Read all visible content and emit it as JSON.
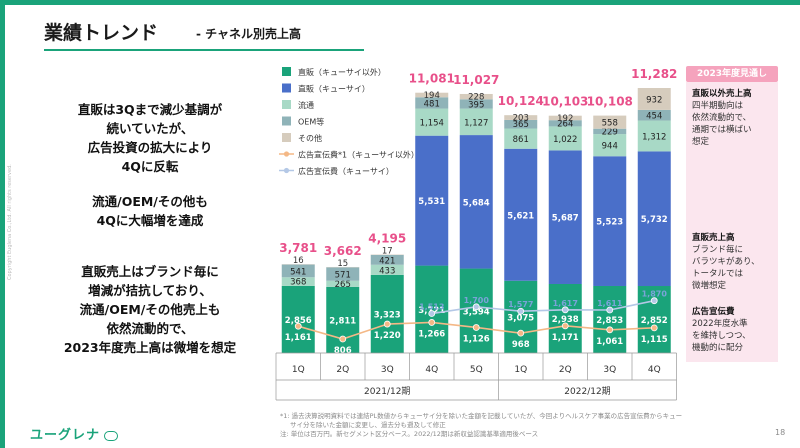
{
  "header": {
    "title": "業績トレンド",
    "subtitle": "- チャネル別売上高"
  },
  "messages": [
    [
      "直販は3Qまで減少基調が",
      "続いていたが、",
      "広告投資の拡大により",
      "4Qに反転"
    ],
    [
      "流通/OEM/その他も",
      "4Qに大幅増を達成"
    ],
    [
      "直販売上はブランド毎に",
      "増減が拮抗しており、",
      "流通/OEM/その他売上も",
      "依然流動的で、",
      "2023年度売上高は微増を想定"
    ]
  ],
  "side": {
    "badge": "2023年度見通し",
    "blocks": [
      {
        "heading": "直販以外売上高",
        "lines": [
          "四半期動向は",
          "依然流動的で、",
          "通期では横ばい",
          "想定"
        ]
      },
      {
        "heading": "直販売上高",
        "lines": [
          "ブランド毎に",
          "バラツキがあり、",
          "トータルでは",
          "微増想定"
        ]
      },
      {
        "heading": "広告宣伝費",
        "lines": [
          "2022年度水準",
          "を維持しつつ、",
          "機動的に配分"
        ]
      }
    ]
  },
  "footer": {
    "logo": "ユーグレナ",
    "notes": [
      "*1: 過去決算説明資料では連結PL数値からキューサイ分を除いた金額を記載していたが、今回よりヘルスケア事業の広告宣伝費からキュー",
      "サイ分を除いた金額に変更し、過去分も遡及して修正",
      "注: 単位は百万円。新セグメント区分ベース。2022/12期は新収益認識基準適用後ベース"
    ],
    "page": "18",
    "copyright": "Copyright Euglena Co.,Ltd. All rights reserved."
  },
  "colors": {
    "direct_ex": "#1aa37a",
    "direct_q": "#4a6fc9",
    "retail": "#a8d9c6",
    "oem": "#8fb3b8",
    "other": "#d6ccbd",
    "ad_ex": "#f4b886",
    "ad_q": "#b4c8e6",
    "total": "#e8508a",
    "badge": "#f5a3bd"
  },
  "chart_data": {
    "type": "bar",
    "stacked": true,
    "title": "チャネル別売上高",
    "categories": [
      "1Q",
      "2Q",
      "3Q",
      "4Q",
      "5Q",
      "1Q",
      "2Q",
      "3Q",
      "4Q"
    ],
    "groups": [
      {
        "label": "2021/12期",
        "categories": [
          "1Q",
          "2Q",
          "3Q",
          "4Q",
          "5Q"
        ]
      },
      {
        "label": "2022/12期",
        "categories": [
          "1Q",
          "2Q",
          "3Q",
          "4Q"
        ]
      }
    ],
    "series": [
      {
        "name": "直販（キューサイ以外）",
        "values": [
          2856,
          2811,
          3323,
          3721,
          3594,
          3075,
          2938,
          2853,
          2852
        ]
      },
      {
        "name": "直販（キューサイ）",
        "values": [
          0,
          0,
          0,
          5531,
          5684,
          5621,
          5687,
          5523,
          5732
        ]
      },
      {
        "name": "流通",
        "values": [
          368,
          265,
          433,
          1154,
          1127,
          861,
          1022,
          944,
          1312
        ]
      },
      {
        "name": "OEM等",
        "values": [
          541,
          571,
          421,
          481,
          395,
          365,
          264,
          229,
          454
        ]
      },
      {
        "name": "その他",
        "values": [
          16,
          15,
          17,
          194,
          228,
          203,
          192,
          558,
          932
        ]
      }
    ],
    "totals": [
      3781,
      3662,
      4195,
      11081,
      11027,
      10124,
      10103,
      10108,
      11282
    ],
    "lines": [
      {
        "name": "広告宣伝費*1（キューサイ以外）",
        "values": [
          1161,
          806,
          1220,
          1266,
          1126,
          968,
          1171,
          1061,
          1115
        ]
      },
      {
        "name": "広告宣伝費（キューサイ）",
        "values": [
          null,
          null,
          null,
          1513,
          1700,
          1577,
          1617,
          1611,
          1870
        ]
      }
    ],
    "legend": [
      "直販（キューサイ以外）",
      "直販（キューサイ）",
      "流通",
      "OEM等",
      "その他",
      "広告宣伝費*1（キューサイ以外）",
      "広告宣伝費（キューサイ）"
    ],
    "legend_position": "top-left",
    "ylim": [
      0,
      11282
    ]
  }
}
